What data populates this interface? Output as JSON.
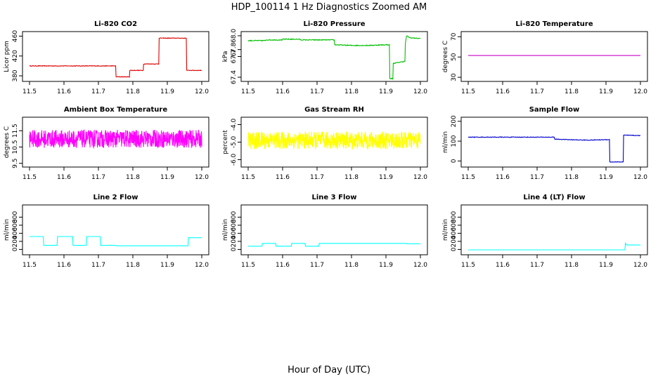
{
  "title": "HDP_100114  1 Hz Diagnostics Zoomed AM",
  "xlabel": "Hour of Day (UTC)",
  "colors": {
    "red": "#dd0000",
    "green": "#00c000",
    "magenta": "#ff00ff",
    "yellow": "#ffff00",
    "blue": "#0000cc",
    "cyan": "#00ffff"
  },
  "chart_data": [
    {
      "type": "line",
      "title": "Li-820 CO2",
      "ylabel": "Licor ppm",
      "color": "#dd0000",
      "xlim": [
        11.5,
        12.0
      ],
      "xticks": [
        11.5,
        11.6,
        11.7,
        11.8,
        11.9,
        12.0
      ],
      "xticklabels": [
        "11.5",
        "11.6",
        "11.7",
        "11.8",
        "11.9",
        "12.0"
      ],
      "ylim": [
        373,
        465
      ],
      "yticks": [
        380,
        420,
        460
      ],
      "yticklabels": [
        "380",
        "420",
        "460"
      ],
      "noise": 0.6,
      "x": [
        11.5,
        11.75,
        11.751,
        11.79,
        11.791,
        11.83,
        11.831,
        11.875,
        11.876,
        11.955,
        11.956,
        12.0
      ],
      "y": [
        400,
        400,
        378,
        378,
        391,
        391,
        404,
        404,
        456,
        456,
        391,
        391
      ]
    },
    {
      "type": "line",
      "title": "Li-820 Pressure",
      "ylabel": "kPa",
      "color": "#00c000",
      "xlim": [
        11.5,
        12.0
      ],
      "xticks": [
        11.5,
        11.6,
        11.7,
        11.8,
        11.9,
        12.0
      ],
      "xticklabels": [
        "11.5",
        "11.6",
        "11.7",
        "11.8",
        "11.9",
        "12.0"
      ],
      "ylim": [
        67.37,
        68.03
      ],
      "yticks": [
        67.4,
        67.7,
        67.8,
        68.0
      ],
      "yticklabels": [
        "67.4",
        "67.7",
        "67.8",
        "68.0"
      ],
      "noise": 0.006,
      "x": [
        11.5,
        11.55,
        11.551,
        11.6,
        11.601,
        11.65,
        11.651,
        11.75,
        11.751,
        11.8,
        11.85,
        11.9,
        11.91,
        11.911,
        11.92,
        11.921,
        11.955,
        11.956,
        11.96,
        11.97,
        12.0
      ],
      "y": [
        67.93,
        67.93,
        67.94,
        67.94,
        67.95,
        67.95,
        67.94,
        67.94,
        67.87,
        67.86,
        67.86,
        67.87,
        67.87,
        67.38,
        67.38,
        67.6,
        67.63,
        67.88,
        68.0,
        67.97,
        67.96
      ]
    },
    {
      "type": "line",
      "title": "Li-820 Temperature",
      "ylabel": "degrees C",
      "color": "#cc00cc",
      "xlim": [
        11.5,
        12.0
      ],
      "xticks": [
        11.5,
        11.6,
        11.7,
        11.8,
        11.9,
        12.0
      ],
      "xticklabels": [
        "11.5",
        "11.6",
        "11.7",
        "11.8",
        "11.9",
        "12.0"
      ],
      "ylim": [
        28,
        73
      ],
      "yticks": [
        30,
        50,
        70
      ],
      "yticklabels": [
        "30",
        "50",
        "70"
      ],
      "noise": 0,
      "x": [
        11.5,
        12.0
      ],
      "y": [
        51.5,
        51.5
      ]
    },
    {
      "type": "line",
      "title": "Ambient Box Temperature",
      "ylabel": "degrees C",
      "color": "#ff00ff",
      "xlim": [
        11.5,
        12.0
      ],
      "xticks": [
        11.5,
        11.6,
        11.7,
        11.8,
        11.9,
        12.0
      ],
      "xticklabels": [
        "11.5",
        "11.6",
        "11.7",
        "11.8",
        "11.9",
        "12.0"
      ],
      "ylim": [
        9.4,
        12.2
      ],
      "yticks": [
        9.5,
        10.5,
        11.5
      ],
      "yticklabels": [
        "9.5",
        "10.5",
        "11.5"
      ],
      "noise": 0.55,
      "x": [
        11.5,
        12.0
      ],
      "y": [
        11.0,
        11.0
      ]
    },
    {
      "type": "line",
      "title": "Gas Stream RH",
      "ylabel": "percent",
      "color": "#ffff00",
      "xlim": [
        11.5,
        12.0
      ],
      "xticks": [
        11.5,
        11.6,
        11.7,
        11.8,
        11.9,
        12.0
      ],
      "xticklabels": [
        "11.5",
        "11.6",
        "11.7",
        "11.8",
        "11.9",
        "12.0"
      ],
      "ylim": [
        -6.3,
        -3.7
      ],
      "yticks": [
        -6.0,
        -5.0,
        -4.0
      ],
      "yticklabels": [
        "-6.0",
        "-5.0",
        "-4.0"
      ],
      "noise": 0.5,
      "x": [
        11.5,
        12.0
      ],
      "y": [
        -4.9,
        -4.9
      ]
    },
    {
      "type": "line",
      "title": "Sample Flow",
      "ylabel": "ml/min",
      "color": "#0000cc",
      "xlim": [
        11.5,
        12.0
      ],
      "xticks": [
        11.5,
        11.6,
        11.7,
        11.8,
        11.9,
        12.0
      ],
      "xticklabels": [
        "11.5",
        "11.6",
        "11.7",
        "11.8",
        "11.9",
        "12.0"
      ],
      "ylim": [
        -20,
        210
      ],
      "yticks": [
        0,
        100,
        200
      ],
      "yticklabels": [
        "0",
        "100",
        "200"
      ],
      "noise": 1.5,
      "x": [
        11.5,
        11.75,
        11.751,
        11.8,
        11.85,
        11.91,
        11.911,
        11.95,
        11.951,
        12.0
      ],
      "y": [
        120,
        120,
        110,
        107,
        105,
        108,
        -5,
        -5,
        130,
        128
      ]
    },
    {
      "type": "line",
      "title": "Line 2 Flow",
      "ylabel": "ml/min",
      "color": "#00ffff",
      "xlim": [
        11.5,
        12.0
      ],
      "xticks": [
        11.5,
        11.6,
        11.7,
        11.8,
        11.9,
        12.0
      ],
      "xticklabels": [
        "11.5",
        "11.6",
        "11.7",
        "11.8",
        "11.9",
        "12.0"
      ],
      "ylim": [
        -80,
        1050
      ],
      "yticks": [
        0,
        200,
        400,
        600,
        800
      ],
      "yticklabels": [
        "0",
        "200",
        "400",
        "600",
        "800"
      ],
      "noise": 0,
      "x": [
        11.5,
        11.54,
        11.541,
        11.58,
        11.581,
        11.625,
        11.626,
        11.665,
        11.666,
        11.705,
        11.706,
        11.75,
        11.751,
        11.96,
        11.961,
        12.0
      ],
      "y": [
        320,
        320,
        100,
        100,
        320,
        320,
        100,
        100,
        320,
        320,
        100,
        100,
        90,
        90,
        290,
        290
      ]
    },
    {
      "type": "line",
      "title": "Line 3 Flow",
      "ylabel": "ml/min",
      "color": "#00ffff",
      "xlim": [
        11.5,
        12.0
      ],
      "xticks": [
        11.5,
        11.6,
        11.7,
        11.8,
        11.9,
        12.0
      ],
      "xticklabels": [
        "11.5",
        "11.6",
        "11.7",
        "11.8",
        "11.9",
        "12.0"
      ],
      "ylim": [
        -80,
        1050
      ],
      "yticks": [
        0,
        200,
        400,
        600,
        800
      ],
      "yticklabels": [
        "0",
        "200",
        "400",
        "600",
        "800"
      ],
      "noise": 0,
      "x": [
        11.5,
        11.54,
        11.541,
        11.58,
        11.581,
        11.625,
        11.626,
        11.665,
        11.666,
        11.705,
        11.706,
        11.96,
        11.961,
        12.0
      ],
      "y": [
        80,
        80,
        150,
        150,
        80,
        80,
        150,
        150,
        80,
        80,
        150,
        150,
        140,
        140
      ]
    },
    {
      "type": "line",
      "title": "Line 4 (LT) Flow",
      "ylabel": "ml/min",
      "color": "#00ffff",
      "xlim": [
        11.5,
        12.0
      ],
      "xticks": [
        11.5,
        11.6,
        11.7,
        11.8,
        11.9,
        12.0
      ],
      "xticklabels": [
        "11.5",
        "11.6",
        "11.7",
        "11.8",
        "11.9",
        "12.0"
      ],
      "ylim": [
        -80,
        1050
      ],
      "yticks": [
        0,
        200,
        400,
        600,
        800
      ],
      "yticklabels": [
        "0",
        "200",
        "400",
        "600",
        "800"
      ],
      "noise": 0,
      "x": [
        11.5,
        11.955,
        11.956,
        11.96,
        12.0
      ],
      "y": [
        -10,
        -10,
        160,
        110,
        110
      ]
    }
  ]
}
